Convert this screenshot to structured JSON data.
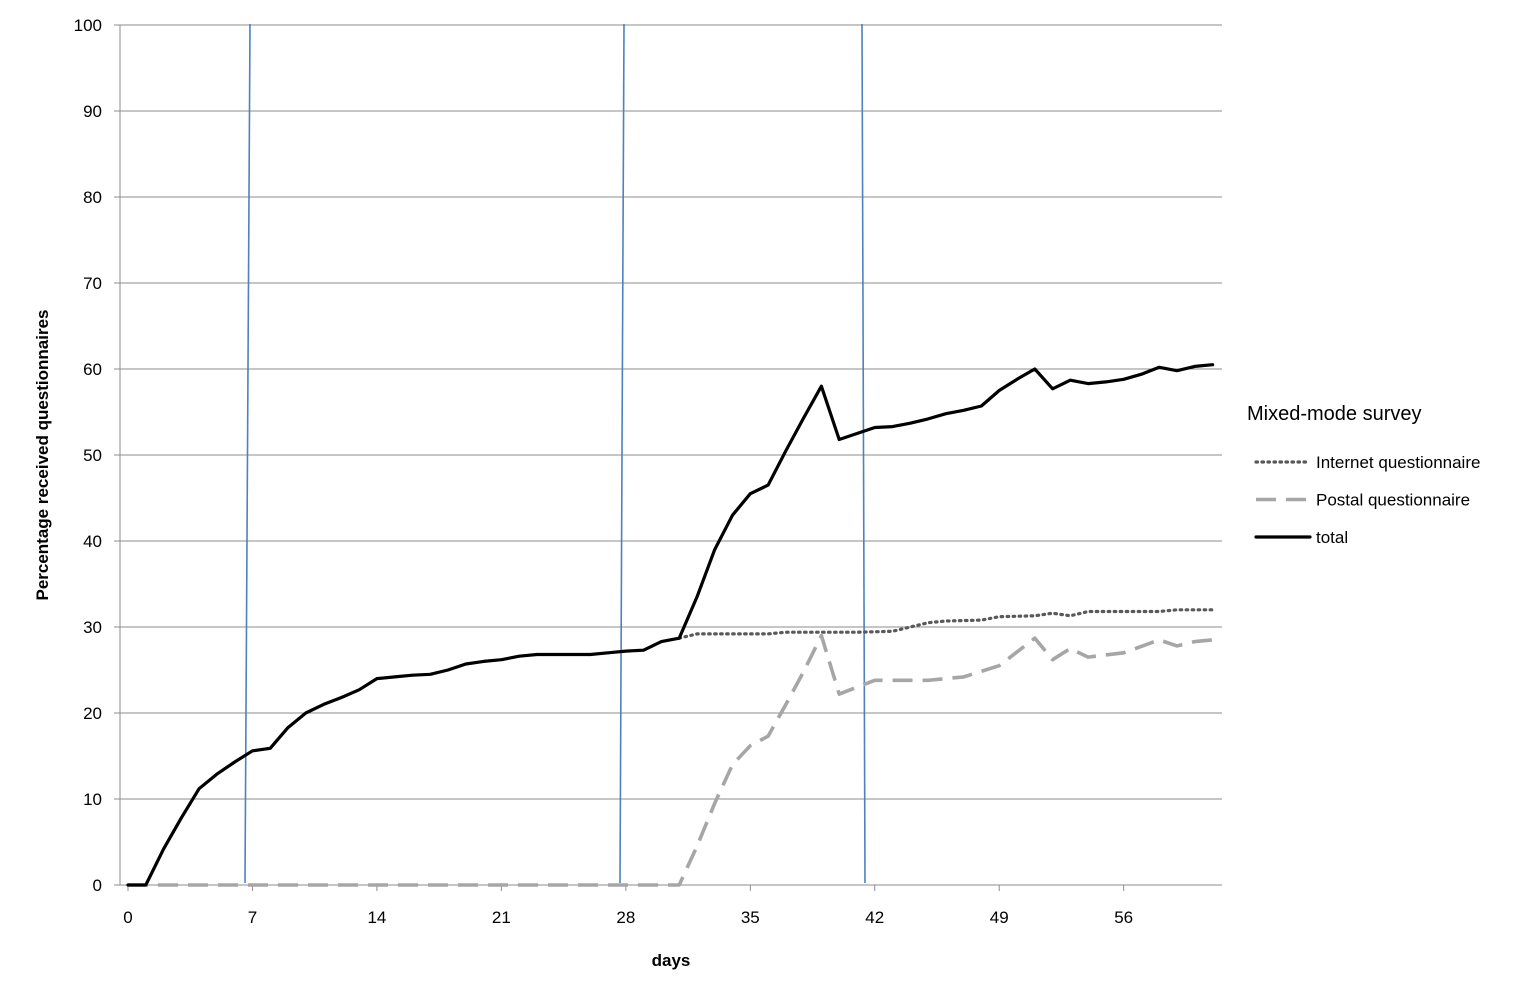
{
  "chart_data": {
    "type": "line",
    "title": "",
    "xlabel": "days",
    "ylabel": "Percentage received questionnaires",
    "xlim": [
      0,
      61
    ],
    "ylim": [
      0,
      100
    ],
    "x_ticks": [
      0,
      7,
      14,
      21,
      28,
      35,
      42,
      49,
      56
    ],
    "y_ticks": [
      0,
      10,
      20,
      30,
      40,
      50,
      60,
      70,
      80,
      90,
      100
    ],
    "horizontal_grid": true,
    "legend": {
      "title": "Mixed-mode survey",
      "position": "right"
    },
    "reference_lines_x": [
      7,
      28,
      42
    ],
    "reference_line_color": "#4f81bd",
    "series": [
      {
        "name": "Internet questionnaire",
        "style": "dotted",
        "color": "#595959",
        "points": [
          [
            31,
            28.7
          ],
          [
            32,
            29.2
          ],
          [
            34,
            29.2
          ],
          [
            36,
            29.2
          ],
          [
            37,
            29.4
          ],
          [
            39,
            29.4
          ],
          [
            41,
            29.4
          ],
          [
            43,
            29.5
          ],
          [
            44,
            30.0
          ],
          [
            45,
            30.5
          ],
          [
            46,
            30.7
          ],
          [
            48,
            30.8
          ],
          [
            49,
            31.2
          ],
          [
            51,
            31.3
          ],
          [
            52,
            31.6
          ],
          [
            53,
            31.3
          ],
          [
            54,
            31.8
          ],
          [
            56,
            31.8
          ],
          [
            58,
            31.8
          ],
          [
            59,
            32.0
          ],
          [
            61,
            32.0
          ]
        ]
      },
      {
        "name": "Postal questionnaire",
        "style": "dashed",
        "color": "#a6a6a6",
        "points": [
          [
            0,
            0
          ],
          [
            31,
            0
          ],
          [
            32,
            4.5
          ],
          [
            33,
            9.5
          ],
          [
            34,
            14.0
          ],
          [
            35,
            16.2
          ],
          [
            36,
            17.3
          ],
          [
            37,
            21.0
          ],
          [
            38,
            24.8
          ],
          [
            39,
            29.0
          ],
          [
            40,
            22.2
          ],
          [
            41,
            23.0
          ],
          [
            42,
            23.8
          ],
          [
            44,
            23.8
          ],
          [
            45,
            23.8
          ],
          [
            47,
            24.2
          ],
          [
            49,
            25.5
          ],
          [
            51,
            28.7
          ],
          [
            52,
            26.2
          ],
          [
            53,
            27.5
          ],
          [
            54,
            26.5
          ],
          [
            56,
            27.0
          ],
          [
            58,
            28.5
          ],
          [
            59,
            27.8
          ],
          [
            60,
            28.3
          ],
          [
            61,
            28.5
          ]
        ]
      },
      {
        "name": "total",
        "style": "solid",
        "color": "#000000",
        "points": [
          [
            0,
            0
          ],
          [
            1,
            0
          ],
          [
            2,
            4.2
          ],
          [
            3,
            7.8
          ],
          [
            4,
            11.2
          ],
          [
            5,
            12.9
          ],
          [
            6,
            14.3
          ],
          [
            7,
            15.6
          ],
          [
            8,
            15.9
          ],
          [
            9,
            18.3
          ],
          [
            10,
            20.0
          ],
          [
            11,
            21.0
          ],
          [
            12,
            21.8
          ],
          [
            13,
            22.7
          ],
          [
            14,
            24.0
          ],
          [
            15,
            24.2
          ],
          [
            16,
            24.4
          ],
          [
            17,
            24.5
          ],
          [
            18,
            25.0
          ],
          [
            19,
            25.7
          ],
          [
            20,
            26.0
          ],
          [
            21,
            26.2
          ],
          [
            22,
            26.6
          ],
          [
            23,
            26.8
          ],
          [
            24,
            26.8
          ],
          [
            25,
            26.8
          ],
          [
            26,
            26.8
          ],
          [
            27,
            27.0
          ],
          [
            28,
            27.2
          ],
          [
            29,
            27.3
          ],
          [
            30,
            28.3
          ],
          [
            31,
            28.7
          ],
          [
            32,
            33.5
          ],
          [
            33,
            39.0
          ],
          [
            34,
            43.0
          ],
          [
            35,
            45.5
          ],
          [
            36,
            46.5
          ],
          [
            37,
            50.5
          ],
          [
            38,
            54.3
          ],
          [
            39,
            58.0
          ],
          [
            40,
            51.8
          ],
          [
            41,
            52.5
          ],
          [
            42,
            53.2
          ],
          [
            43,
            53.3
          ],
          [
            44,
            53.7
          ],
          [
            45,
            54.2
          ],
          [
            46,
            54.8
          ],
          [
            47,
            55.2
          ],
          [
            48,
            55.7
          ],
          [
            49,
            57.5
          ],
          [
            50,
            58.8
          ],
          [
            51,
            60.0
          ],
          [
            52,
            57.7
          ],
          [
            53,
            58.7
          ],
          [
            54,
            58.3
          ],
          [
            55,
            58.5
          ],
          [
            56,
            58.8
          ],
          [
            57,
            59.4
          ],
          [
            58,
            60.2
          ],
          [
            59,
            59.8
          ],
          [
            60,
            60.3
          ],
          [
            61,
            60.5
          ]
        ]
      }
    ]
  }
}
